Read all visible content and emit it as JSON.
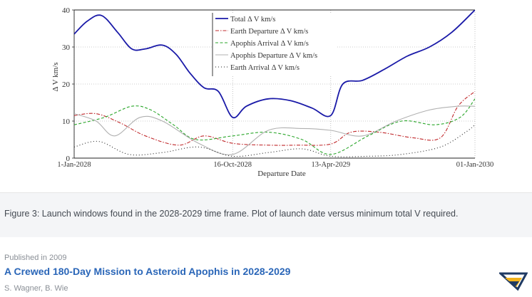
{
  "figure": {
    "caption": "Figure 3: Launch windows found in the 2028-2029 time frame. Plot of launch date versus minimum total V required."
  },
  "paper": {
    "published": "Published in 2009",
    "title": "A Crewed 180-Day Mission to Asteroid Apophis in 2028-2029",
    "authors": "S. Wagner, B. Wie"
  },
  "logo": {
    "icon": "semantic-scholar-logo-icon",
    "color_dark": "#1f3a63",
    "color_accent": "#f2b21b"
  },
  "chart_data": {
    "type": "line",
    "title": "",
    "xlabel": "Departure Date",
    "ylabel": "Δ V km/s",
    "xlim": [
      "2028-01-01",
      "2030-01-01"
    ],
    "ylim": [
      0,
      40
    ],
    "y_ticks": [
      0,
      10,
      20,
      30,
      40
    ],
    "x_ticks": [
      {
        "date": "2028-01-01",
        "label": "1-Jan-2028"
      },
      {
        "date": "2028-10-16",
        "label": "16-Oct-2028"
      },
      {
        "date": "2029-04-13",
        "label": "13-Apr-2029"
      },
      {
        "date": "2030-01-01",
        "label": "01-Jan-2030"
      }
    ],
    "grid": true,
    "legend_position": "top-center",
    "series": [
      {
        "name": "Total Δ V km/s",
        "color": "#1a1aa8",
        "style": "solid",
        "points": [
          [
            "2028-01-01",
            33.5
          ],
          [
            "2028-01-25",
            37
          ],
          [
            "2028-02-20",
            38.5
          ],
          [
            "2028-03-20",
            34
          ],
          [
            "2028-04-15",
            29.5
          ],
          [
            "2028-05-10",
            29.5
          ],
          [
            "2028-06-10",
            30.5
          ],
          [
            "2028-07-05",
            28
          ],
          [
            "2028-07-30",
            23
          ],
          [
            "2028-08-25",
            19
          ],
          [
            "2028-09-20",
            18
          ],
          [
            "2028-10-16",
            11
          ],
          [
            "2028-11-10",
            14
          ],
          [
            "2028-12-20",
            16
          ],
          [
            "2029-01-30",
            15.5
          ],
          [
            "2029-03-10",
            13.5
          ],
          [
            "2029-04-13",
            11.5
          ],
          [
            "2029-05-05",
            20
          ],
          [
            "2029-06-10",
            21
          ],
          [
            "2029-07-20",
            24
          ],
          [
            "2029-08-30",
            27.5
          ],
          [
            "2029-10-10",
            30
          ],
          [
            "2029-11-20",
            34
          ],
          [
            "2030-01-01",
            40
          ]
        ]
      },
      {
        "name": "Earth Departure Δ V km/s",
        "color": "#c0282b",
        "style": "dashdot",
        "points": [
          [
            "2028-01-01",
            11.5
          ],
          [
            "2028-02-10",
            12
          ],
          [
            "2028-03-25",
            9.5
          ],
          [
            "2028-05-10",
            6
          ],
          [
            "2028-07-10",
            3.5
          ],
          [
            "2028-08-25",
            6
          ],
          [
            "2028-10-16",
            4
          ],
          [
            "2028-12-20",
            3.5
          ],
          [
            "2029-02-10",
            3.5
          ],
          [
            "2029-04-13",
            3.8
          ],
          [
            "2029-05-20",
            7
          ],
          [
            "2029-07-10",
            7
          ],
          [
            "2029-09-10",
            5.5
          ],
          [
            "2029-10-30",
            5.5
          ],
          [
            "2029-12-01",
            14
          ],
          [
            "2030-01-01",
            18
          ]
        ]
      },
      {
        "name": "Apophis Arrival Δ V km/s",
        "color": "#2aa62a",
        "style": "dashed",
        "points": [
          [
            "2028-01-01",
            9
          ],
          [
            "2028-02-25",
            11
          ],
          [
            "2028-04-15",
            14
          ],
          [
            "2028-05-20",
            13
          ],
          [
            "2028-06-30",
            9
          ],
          [
            "2028-08-10",
            5
          ],
          [
            "2028-10-16",
            6
          ],
          [
            "2028-12-20",
            7
          ],
          [
            "2029-02-20",
            5
          ],
          [
            "2029-04-13",
            1
          ],
          [
            "2029-06-20",
            6
          ],
          [
            "2029-08-20",
            10
          ],
          [
            "2029-10-20",
            9
          ],
          [
            "2029-12-05",
            11
          ],
          [
            "2030-01-01",
            16
          ]
        ]
      },
      {
        "name": "Apophis Departure Δ V km/s",
        "color": "#b0b0b0",
        "style": "solid",
        "points": [
          [
            "2028-01-01",
            12
          ],
          [
            "2028-02-10",
            10
          ],
          [
            "2028-03-15",
            6
          ],
          [
            "2028-04-30",
            11
          ],
          [
            "2028-06-10",
            10
          ],
          [
            "2028-08-15",
            4
          ],
          [
            "2028-10-16",
            1
          ],
          [
            "2028-12-20",
            7.5
          ],
          [
            "2029-02-20",
            8
          ],
          [
            "2029-04-13",
            7.5
          ],
          [
            "2029-06-10",
            6
          ],
          [
            "2029-08-10",
            10
          ],
          [
            "2029-10-10",
            13
          ],
          [
            "2029-11-30",
            14
          ],
          [
            "2030-01-01",
            14
          ]
        ]
      },
      {
        "name": "Earth Arrival Δ V km/s",
        "color": "#222222",
        "style": "dotted",
        "points": [
          [
            "2028-01-01",
            3
          ],
          [
            "2028-02-15",
            4.5
          ],
          [
            "2028-04-10",
            1
          ],
          [
            "2028-06-10",
            1.5
          ],
          [
            "2028-08-15",
            3
          ],
          [
            "2028-10-16",
            0.5
          ],
          [
            "2028-12-20",
            1.5
          ],
          [
            "2029-02-20",
            2.5
          ],
          [
            "2029-04-13",
            0.5
          ],
          [
            "2029-06-20",
            0.5
          ],
          [
            "2029-08-20",
            1
          ],
          [
            "2029-10-30",
            3
          ],
          [
            "2029-12-15",
            7
          ],
          [
            "2030-01-01",
            9
          ]
        ]
      }
    ]
  }
}
